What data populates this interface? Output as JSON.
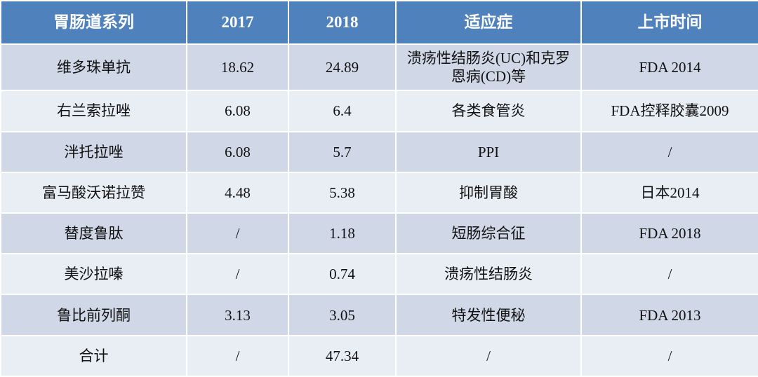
{
  "table": {
    "header": [
      "胃肠道系列",
      "2017",
      "2018",
      "适应症",
      "上市时间"
    ],
    "rows": [
      [
        "维多珠单抗",
        "18.62",
        "24.89",
        "溃疡性结肠炎(UC)和克罗恩病(CD)等",
        "FDA 2014"
      ],
      [
        "右兰索拉唑",
        "6.08",
        "6.4",
        "各类食管炎",
        "FDA控释胶囊2009"
      ],
      [
        "泮托拉唑",
        "6.08",
        "5.7",
        "PPI",
        "/"
      ],
      [
        "富马酸沃诺拉赞",
        "4.48",
        "5.38",
        "抑制胃酸",
        "日本2014"
      ],
      [
        "替度鲁肽",
        "/",
        "1.18",
        "短肠综合征",
        "FDA 2018"
      ],
      [
        "美沙拉嗪",
        "/",
        "0.74",
        "溃疡性结肠炎",
        "/"
      ],
      [
        "鲁比前列酮",
        "3.13",
        "3.05",
        "特发性便秘",
        "FDA 2013"
      ],
      [
        "合计",
        "/",
        "47.34",
        "/",
        "/"
      ]
    ]
  }
}
